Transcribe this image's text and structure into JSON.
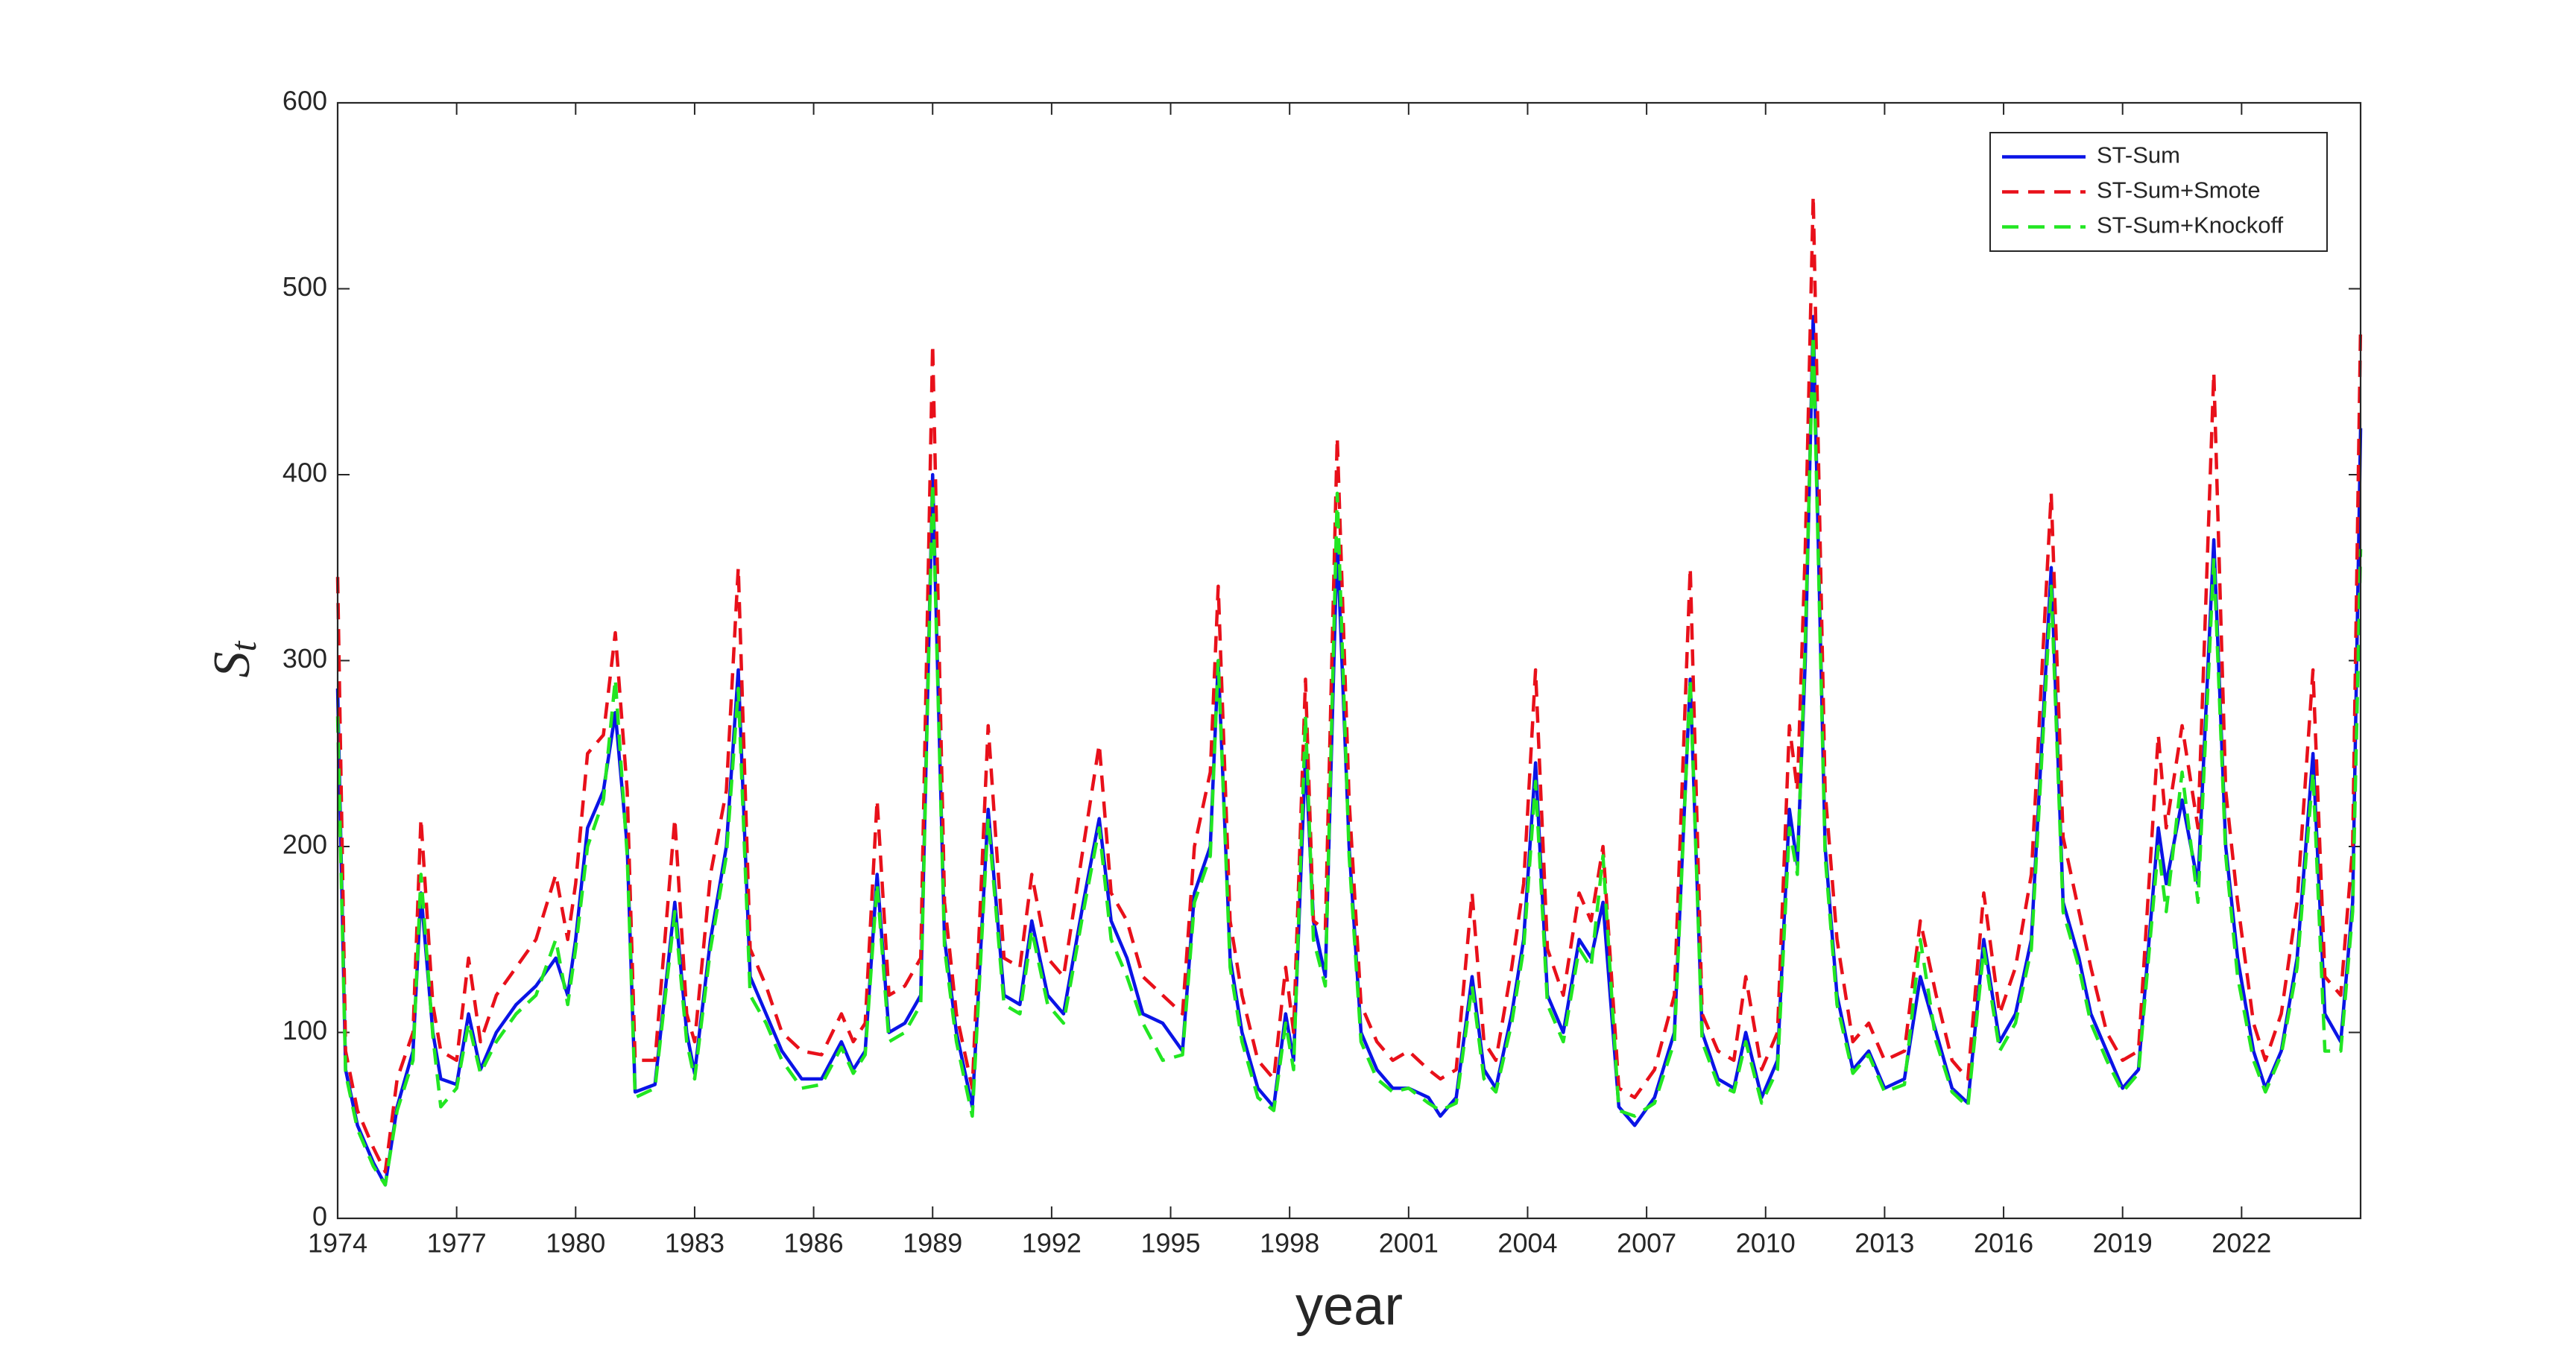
{
  "chart_data": {
    "type": "line",
    "xlabel": "year",
    "ylabel": "S",
    "ylabel_subscript": "t",
    "xlim": [
      1974,
      2025
    ],
    "xticks": [
      1974,
      1977,
      1980,
      1983,
      1986,
      1989,
      1992,
      1995,
      1998,
      2001,
      2004,
      2007,
      2010,
      2013,
      2016,
      2019,
      2022
    ],
    "ylim": [
      0,
      600
    ],
    "yticks": [
      0,
      100,
      200,
      300,
      400,
      500,
      600
    ],
    "grid": false,
    "legend": "upper right",
    "x": [
      1974.0,
      1974.2,
      1974.5,
      1974.9,
      1975.2,
      1975.5,
      1975.9,
      1976.1,
      1976.4,
      1976.6,
      1977.0,
      1977.3,
      1977.6,
      1978.0,
      1978.5,
      1979.0,
      1979.5,
      1979.8,
      1980.0,
      1980.3,
      1980.7,
      1981.0,
      1981.3,
      1981.5,
      1982.0,
      1982.5,
      1982.8,
      1983.0,
      1983.4,
      1983.8,
      1984.1,
      1984.4,
      1984.8,
      1985.2,
      1985.7,
      1986.2,
      1986.7,
      1987.0,
      1987.3,
      1987.6,
      1987.9,
      1988.3,
      1988.7,
      1989.0,
      1989.3,
      1989.6,
      1990.0,
      1990.4,
      1990.8,
      1991.2,
      1991.5,
      1991.9,
      1992.3,
      1992.8,
      1993.2,
      1993.5,
      1993.9,
      1994.3,
      1994.8,
      1995.3,
      1995.6,
      1996.0,
      1996.2,
      1996.5,
      1996.8,
      1997.2,
      1997.6,
      1997.9,
      1998.1,
      1998.4,
      1998.6,
      1998.9,
      1999.2,
      1999.5,
      1999.8,
      2000.2,
      2000.6,
      2001.0,
      2001.5,
      2001.8,
      2002.2,
      2002.6,
      2002.9,
      2003.2,
      2003.6,
      2003.9,
      2004.2,
      2004.5,
      2004.9,
      2005.3,
      2005.6,
      2005.9,
      2006.3,
      2006.7,
      2007.2,
      2007.7,
      2008.1,
      2008.4,
      2008.8,
      2009.2,
      2009.5,
      2009.9,
      2010.3,
      2010.6,
      2010.8,
      2011.0,
      2011.2,
      2011.5,
      2011.8,
      2012.2,
      2012.6,
      2013.0,
      2013.5,
      2013.9,
      2014.3,
      2014.7,
      2015.1,
      2015.5,
      2015.9,
      2016.3,
      2016.7,
      2017.2,
      2017.5,
      2017.9,
      2018.2,
      2018.6,
      2019.0,
      2019.4,
      2019.9,
      2020.1,
      2020.5,
      2020.9,
      2021.3,
      2021.6,
      2021.9,
      2022.3,
      2022.6,
      2023.0,
      2023.4,
      2023.8,
      2024.1,
      2024.5,
      2024.8,
      2025.0
    ],
    "series": [
      {
        "name": "ST-Sum",
        "color": "#0a14e6",
        "line_style": "solid",
        "values": [
          285,
          80,
          50,
          30,
          18,
          60,
          90,
          175,
          100,
          75,
          72,
          110,
          80,
          100,
          115,
          125,
          140,
          120,
          150,
          210,
          230,
          272,
          200,
          68,
          72,
          170,
          100,
          78,
          150,
          200,
          295,
          130,
          110,
          90,
          75,
          75,
          95,
          80,
          90,
          185,
          100,
          105,
          120,
          400,
          150,
          100,
          60,
          220,
          120,
          115,
          160,
          120,
          110,
          170,
          215,
          160,
          140,
          110,
          105,
          90,
          175,
          200,
          300,
          140,
          100,
          70,
          60,
          110,
          85,
          250,
          160,
          130,
          365,
          200,
          100,
          80,
          70,
          70,
          65,
          55,
          65,
          130,
          80,
          70,
          110,
          150,
          245,
          120,
          100,
          150,
          140,
          170,
          60,
          50,
          65,
          100,
          290,
          100,
          75,
          70,
          100,
          65,
          85,
          220,
          190,
          300,
          485,
          200,
          120,
          80,
          90,
          70,
          75,
          130,
          100,
          70,
          62,
          150,
          95,
          110,
          150,
          350,
          170,
          140,
          110,
          90,
          70,
          80,
          210,
          180,
          225,
          180,
          365,
          200,
          140,
          90,
          70,
          90,
          140,
          250,
          110,
          95,
          170,
          425
        ]
      },
      {
        "name": "ST-Sum+Smote",
        "color": "#e8101a",
        "line_style": "dashed",
        "values": [
          345,
          90,
          58,
          38,
          25,
          75,
          100,
          215,
          115,
          90,
          85,
          140,
          95,
          120,
          135,
          150,
          185,
          150,
          180,
          250,
          260,
          315,
          230,
          85,
          85,
          215,
          110,
          95,
          185,
          230,
          350,
          145,
          125,
          100,
          90,
          88,
          110,
          95,
          105,
          225,
          120,
          125,
          140,
          470,
          170,
          110,
          70,
          265,
          140,
          135,
          185,
          140,
          130,
          200,
          255,
          175,
          160,
          130,
          120,
          110,
          200,
          240,
          340,
          160,
          120,
          85,
          75,
          135,
          100,
          290,
          160,
          155,
          420,
          225,
          115,
          95,
          85,
          90,
          80,
          75,
          80,
          175,
          95,
          85,
          135,
          180,
          295,
          145,
          120,
          175,
          160,
          200,
          70,
          65,
          80,
          120,
          350,
          110,
          90,
          85,
          130,
          80,
          100,
          265,
          230,
          360,
          550,
          230,
          150,
          95,
          105,
          85,
          90,
          160,
          120,
          85,
          75,
          175,
          110,
          135,
          185,
          390,
          205,
          165,
          135,
          100,
          85,
          90,
          260,
          210,
          265,
          210,
          455,
          230,
          170,
          105,
          85,
          110,
          170,
          295,
          130,
          120,
          200,
          480
        ]
      },
      {
        "name": "ST-Sum+Knockoff",
        "color": "#22e622",
        "line_style": "dashed",
        "values": [
          270,
          78,
          48,
          28,
          18,
          58,
          85,
          185,
          98,
          60,
          70,
          105,
          78,
          95,
          110,
          120,
          150,
          115,
          145,
          200,
          225,
          290,
          195,
          65,
          70,
          165,
          95,
          75,
          145,
          195,
          285,
          120,
          105,
          85,
          70,
          72,
          92,
          78,
          88,
          180,
          95,
          100,
          115,
          395,
          145,
          95,
          55,
          215,
          115,
          110,
          155,
          115,
          105,
          165,
          210,
          150,
          130,
          105,
          85,
          88,
          170,
          195,
          300,
          135,
          95,
          65,
          58,
          105,
          80,
          270,
          150,
          125,
          390,
          195,
          95,
          75,
          68,
          70,
          62,
          58,
          62,
          125,
          75,
          68,
          105,
          145,
          235,
          115,
          95,
          145,
          135,
          195,
          58,
          55,
          62,
          95,
          290,
          95,
          72,
          68,
          95,
          62,
          80,
          210,
          185,
          310,
          475,
          195,
          115,
          78,
          88,
          68,
          72,
          150,
          95,
          68,
          60,
          145,
          90,
          105,
          145,
          340,
          165,
          135,
          105,
          85,
          68,
          78,
          200,
          165,
          240,
          170,
          355,
          195,
          130,
          85,
          68,
          88,
          135,
          240,
          90,
          90,
          165,
          360
        ]
      }
    ]
  }
}
